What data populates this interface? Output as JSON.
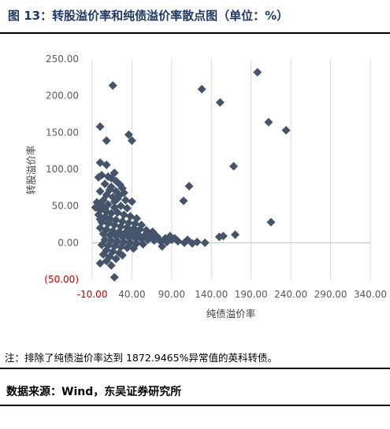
{
  "header": {
    "title": "图 13：转股溢价率和纯债溢价率散点图（单位：%）"
  },
  "colors": {
    "title": "#1f3864",
    "marker": "#44546a",
    "negative_tick": "#c00000",
    "grid": "#d9d9d9",
    "tick_text": "#595959"
  },
  "footer": {
    "note": "注：排除了纯债溢价率达到 1872.9465%异常值的英科转债。",
    "source": "数据来源：Wind，东吴证券研究所"
  },
  "chart_data": {
    "type": "scatter",
    "xlabel": "纯债溢价率",
    "ylabel": "转股溢价率",
    "xlim": [
      -10,
      340
    ],
    "ylim": [
      -50,
      250
    ],
    "xticks": [
      -10,
      40,
      90,
      140,
      190,
      240,
      290,
      340
    ],
    "xtick_labels": [
      "-10.00",
      "40.00",
      "90.00",
      "140.00",
      "190.00",
      "240.00",
      "290.00",
      "340.00"
    ],
    "yticks": [
      250,
      200,
      150,
      100,
      50,
      0,
      -50
    ],
    "ytick_labels": [
      "250.00",
      "200.00",
      "150.00",
      "100.00",
      "50.00",
      "0.00",
      "(50.00)"
    ],
    "vertical_grid": true,
    "horizontal_grid": false,
    "marker": "diamond",
    "points": [
      [
        198,
        232
      ],
      [
        16,
        214
      ],
      [
        128,
        209
      ],
      [
        151,
        191
      ],
      [
        212,
        164
      ],
      [
        234,
        153
      ],
      [
        0,
        158
      ],
      [
        36,
        147
      ],
      [
        40,
        139
      ],
      [
        8,
        139
      ],
      [
        168,
        104
      ],
      [
        0,
        109
      ],
      [
        8,
        106
      ],
      [
        105,
        57
      ],
      [
        112,
        77
      ],
      [
        40,
        56
      ],
      [
        18,
        95
      ],
      [
        -2,
        89
      ],
      [
        2,
        92
      ],
      [
        10,
        90
      ],
      [
        14,
        88
      ],
      [
        20,
        84
      ],
      [
        25,
        79
      ],
      [
        28,
        74
      ],
      [
        6,
        80
      ],
      [
        12,
        72
      ],
      [
        0,
        70
      ],
      [
        8,
        65
      ],
      [
        16,
        62
      ],
      [
        22,
        60
      ],
      [
        30,
        68
      ],
      [
        4,
        58
      ],
      [
        -4,
        55
      ],
      [
        2,
        50
      ],
      [
        10,
        52
      ],
      [
        18,
        48
      ],
      [
        26,
        50
      ],
      [
        34,
        47
      ],
      [
        0,
        44
      ],
      [
        8,
        42
      ],
      [
        14,
        40
      ],
      [
        22,
        41
      ],
      [
        30,
        38
      ],
      [
        38,
        36
      ],
      [
        46,
        33
      ],
      [
        -2,
        38
      ],
      [
        6,
        35
      ],
      [
        12,
        33
      ],
      [
        20,
        31
      ],
      [
        28,
        29
      ],
      [
        36,
        27
      ],
      [
        44,
        26
      ],
      [
        52,
        24
      ],
      [
        2,
        28
      ],
      [
        10,
        26
      ],
      [
        18,
        24
      ],
      [
        26,
        22
      ],
      [
        34,
        21
      ],
      [
        42,
        19
      ],
      [
        50,
        18
      ],
      [
        58,
        17
      ],
      [
        66,
        15
      ],
      [
        0,
        20
      ],
      [
        8,
        18
      ],
      [
        16,
        16
      ],
      [
        24,
        15
      ],
      [
        32,
        14
      ],
      [
        40,
        12
      ],
      [
        48,
        11
      ],
      [
        56,
        10
      ],
      [
        64,
        9
      ],
      [
        72,
        8
      ],
      [
        4,
        12
      ],
      [
        12,
        10
      ],
      [
        20,
        9
      ],
      [
        28,
        8
      ],
      [
        36,
        7
      ],
      [
        44,
        6
      ],
      [
        52,
        5
      ],
      [
        60,
        4
      ],
      [
        68,
        3
      ],
      [
        76,
        2
      ],
      [
        84,
        1
      ],
      [
        6,
        4
      ],
      [
        14,
        3
      ],
      [
        22,
        2
      ],
      [
        30,
        1
      ],
      [
        38,
        0
      ],
      [
        46,
        -1
      ],
      [
        54,
        -2
      ],
      [
        2,
        -3
      ],
      [
        10,
        -4
      ],
      [
        18,
        -5
      ],
      [
        26,
        -6
      ],
      [
        34,
        -7
      ],
      [
        42,
        -8
      ],
      [
        8,
        -10
      ],
      [
        16,
        -12
      ],
      [
        24,
        -14
      ],
      [
        4,
        -16
      ],
      [
        12,
        -19
      ],
      [
        20,
        -22
      ],
      [
        28,
        -17
      ],
      [
        0,
        -28
      ],
      [
        8,
        -25
      ],
      [
        14,
        -31
      ],
      [
        18,
        -47
      ],
      [
        78,
        -5
      ],
      [
        82,
        6
      ],
      [
        90,
        4
      ],
      [
        98,
        2
      ],
      [
        106,
        0
      ],
      [
        110,
        4
      ],
      [
        116,
        -1
      ],
      [
        122,
        1
      ],
      [
        132,
        0
      ],
      [
        150,
        8
      ],
      [
        155,
        9
      ],
      [
        170,
        11
      ],
      [
        215,
        28
      ],
      [
        62,
        12
      ],
      [
        70,
        10
      ],
      [
        88,
        9
      ],
      [
        94,
        6
      ],
      [
        30,
        10
      ],
      [
        36,
        16
      ],
      [
        44,
        18
      ],
      [
        12,
        30
      ],
      [
        6,
        46
      ],
      [
        0,
        32
      ],
      [
        -6,
        48
      ],
      [
        18,
        56
      ],
      [
        24,
        64
      ],
      [
        32,
        58
      ],
      [
        14,
        76
      ],
      [
        20,
        70
      ]
    ]
  }
}
